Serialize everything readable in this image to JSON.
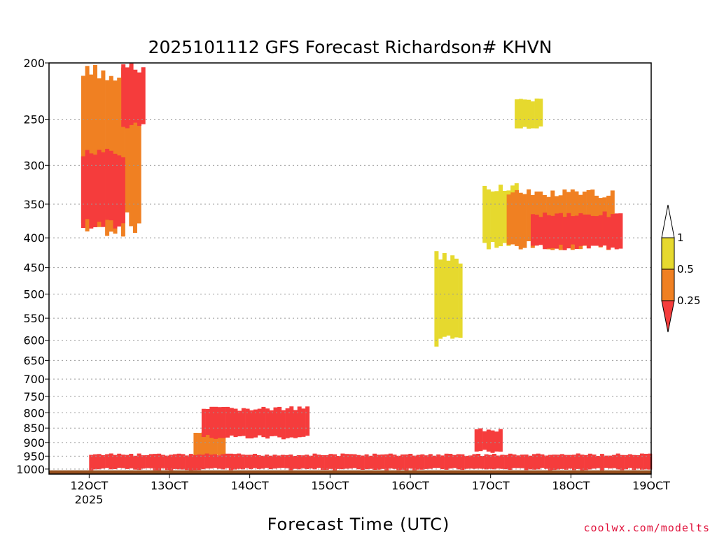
{
  "chart_data": {
    "type": "heatmap",
    "title": "2025101112 GFS Forecast Richardson# KHVN",
    "xlabel": "Forecast Time (UTC)",
    "ylabel": "",
    "x_ticks": [
      "12OCT",
      "13OCT",
      "14OCT",
      "15OCT",
      "16OCT",
      "17OCT",
      "18OCT",
      "19OCT"
    ],
    "x_year_label": "2025",
    "y_ticks": [
      200,
      250,
      300,
      350,
      400,
      450,
      500,
      550,
      600,
      650,
      700,
      750,
      800,
      850,
      900,
      950,
      1000
    ],
    "y_range_hpa": [
      1020,
      200
    ],
    "y_scale": "log-pressure",
    "grid": "dotted horizontal at pressure levels",
    "legend": {
      "placement": "right",
      "levels": [
        "1",
        "0.5",
        "0.25"
      ],
      "colors": {
        "above_1": "#ffffff",
        "0.5-1": "#e6d92e",
        "0.25-0.5": "#f08022",
        "below_0.25": "#f53c3c"
      }
    },
    "ground_color": "#96501e",
    "regions": [
      {
        "value_class": "0.25-0.5",
        "day_start": 11.9,
        "day_end": 12.6,
        "p_top": 200,
        "p_bottom": 400
      },
      {
        "value_class": "below_0.25",
        "day_start": 11.9,
        "day_end": 12.4,
        "p_top": 280,
        "p_bottom": 390
      },
      {
        "value_class": "below_0.25",
        "day_start": 12.4,
        "day_end": 12.65,
        "p_top": 200,
        "p_bottom": 260
      },
      {
        "value_class": "0.25-0.5",
        "day_start": 13.3,
        "day_end": 13.65,
        "p_top": 860,
        "p_bottom": 960
      },
      {
        "value_class": "below_0.25",
        "day_start": 12.0,
        "day_end": 19.0,
        "p_top": 940,
        "p_bottom": 1005
      },
      {
        "value_class": "below_0.25",
        "day_start": 13.4,
        "day_end": 14.7,
        "p_top": 780,
        "p_bottom": 890
      },
      {
        "value_class": "0.5-1",
        "day_start": 16.9,
        "day_end": 17.3,
        "p_top": 320,
        "p_bottom": 420
      },
      {
        "value_class": "0.25-0.5",
        "day_start": 17.2,
        "day_end": 18.5,
        "p_top": 330,
        "p_bottom": 420
      },
      {
        "value_class": "below_0.25",
        "day_start": 17.5,
        "day_end": 18.6,
        "p_top": 360,
        "p_bottom": 420
      },
      {
        "value_class": "0.5-1",
        "day_start": 17.3,
        "day_end": 17.6,
        "p_top": 230,
        "p_bottom": 260
      },
      {
        "value_class": "below_0.25",
        "day_start": 16.8,
        "day_end": 17.1,
        "p_top": 850,
        "p_bottom": 940
      },
      {
        "value_class": "0.5-1",
        "day_start": 16.3,
        "day_end": 16.6,
        "p_top": 420,
        "p_bottom": 620
      }
    ],
    "credit": "coolwx.com/modelts"
  }
}
